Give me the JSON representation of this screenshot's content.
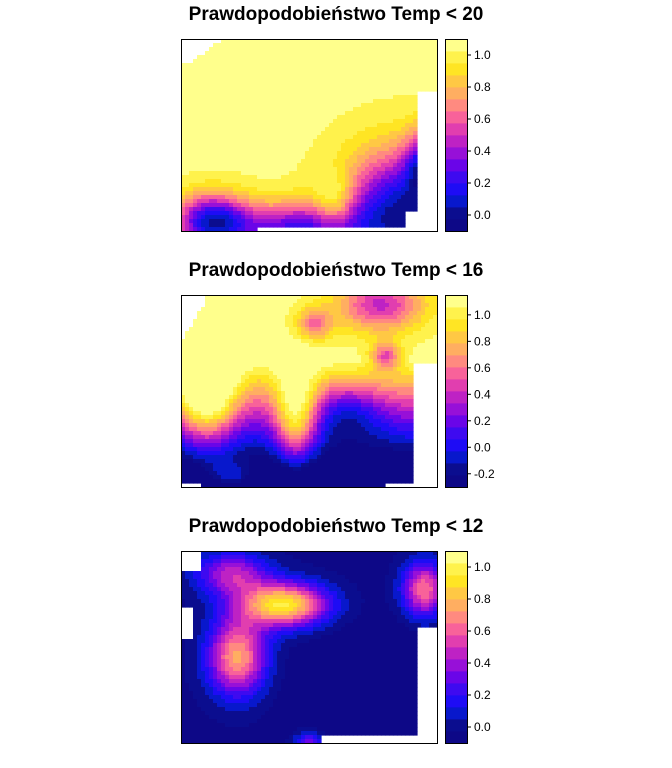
{
  "palette": [
    "#0D0887",
    "#0B0D8F",
    "#0818CC",
    "#1E0CF5",
    "#3E0AF0",
    "#6A05E8",
    "#9710D8",
    "#BE22C4",
    "#E13EAF",
    "#F8629A",
    "#FF8A80",
    "#FFAE61",
    "#FFC844",
    "#FFE524",
    "#FFF24C",
    "#FFFF8C"
  ],
  "colors": {
    "low": "#000080",
    "mid": "#3300FF",
    "high": "#FFED10"
  },
  "chart_data": [
    {
      "type": "heatmap",
      "title": "Prawdopodobieństwo Temp < 20",
      "colorbar": {
        "ticks": [
          0.0,
          0.2,
          0.4,
          0.6,
          0.8,
          1.0
        ],
        "tick_labels": [
          "0.0",
          "0.2",
          "0.4",
          "0.6",
          "0.8",
          "1.0"
        ],
        "range": [
          -0.1,
          1.1
        ]
      },
      "grid": false,
      "description_values": {
        "north": 1.0,
        "south_east": 0.1,
        "south_west": 0.2
      }
    },
    {
      "type": "heatmap",
      "title": "Prawdopodobieństwo Temp < 16",
      "colorbar": {
        "ticks": [
          -0.2,
          0.0,
          0.2,
          0.4,
          0.6,
          0.8,
          1.0
        ],
        "tick_labels": [
          "-0.2",
          "0.0",
          "0.2",
          "0.4",
          "0.6",
          "0.8",
          "1.0"
        ],
        "range": [
          -0.3,
          1.15
        ]
      },
      "grid": false
    },
    {
      "type": "heatmap",
      "title": "Prawdopodobieństwo Temp < 12",
      "colorbar": {
        "ticks": [
          0.0,
          0.2,
          0.4,
          0.6,
          0.8,
          1.0
        ],
        "tick_labels": [
          "0.0",
          "0.2",
          "0.4",
          "0.6",
          "0.8",
          "1.0"
        ],
        "range": [
          -0.1,
          1.1
        ]
      },
      "grid": false
    }
  ]
}
